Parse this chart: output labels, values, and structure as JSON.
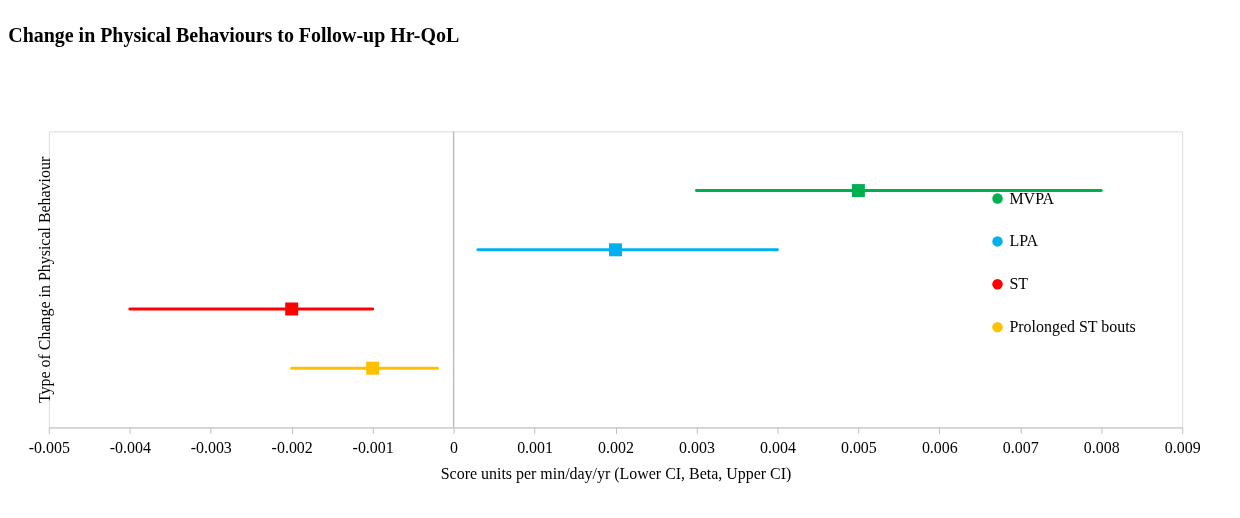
{
  "chart_data": {
    "type": "scatter",
    "orientation": "horizontal",
    "title": "Change in Physical Behaviours to Follow-up  Hr-QoL",
    "xlabel": "Score units per min/day/yr (Lower CI, Beta, Upper CI)",
    "ylabel": "Type of Change in Physical Behaviour",
    "categories": [
      null,
      null,
      null,
      null
    ],
    "series": [
      {
        "name": "MVPA",
        "color": "#00b050",
        "values": [
          0.005,
          null,
          null,
          null
        ],
        "errors": [
          [
            0.003,
            0.008
          ],
          null,
          null,
          null
        ]
      },
      {
        "name": "LPA",
        "color": "#00b0f0",
        "values": [
          null,
          0.002,
          null,
          null
        ],
        "errors": [
          null,
          [
            0.0003,
            0.004
          ],
          null,
          null
        ]
      },
      {
        "name": "ST",
        "color": "#ff0000",
        "values": [
          null,
          null,
          -0.002,
          null
        ],
        "errors": [
          null,
          null,
          [
            -0.004,
            -0.001
          ],
          null
        ]
      },
      {
        "name": "Prolonged ST bouts",
        "color": "#ffc000",
        "values": [
          null,
          null,
          null,
          -0.001
        ],
        "errors": [
          null,
          null,
          null,
          [
            -0.002,
            -0.0002
          ]
        ]
      }
    ],
    "xlim": [
      -0.005,
      0.009
    ],
    "xticks": [
      -0.005,
      -0.004,
      -0.003,
      -0.002,
      -0.001,
      0,
      0.001,
      0.002,
      0.003,
      0.004,
      0.005,
      0.006,
      0.007,
      0.008,
      0.009
    ],
    "ref_lines": [
      {
        "axis": "x",
        "value": 0,
        "color": "#bfbfbf"
      }
    ],
    "marker": "square",
    "legend": "right",
    "grid": false
  }
}
